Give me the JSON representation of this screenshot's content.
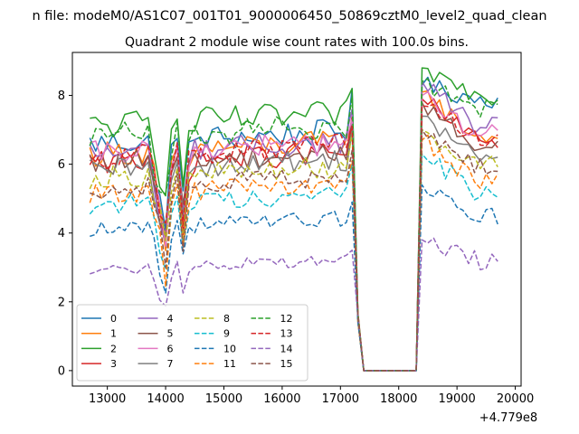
{
  "suptitle": "n file: modeM0/AS1C07_001T01_9000006450_50869cztM0_level2_quad_clean",
  "chart_data": {
    "type": "line",
    "title": "Quadrant 2 module wise count rates with 100.0s bins.",
    "xlabel": "",
    "ylabel": "",
    "x_offset_label": "+4.779e8",
    "xlim": [
      12400,
      20100
    ],
    "ylim": [
      -0.45,
      9.25
    ],
    "xticks": [
      13000,
      14000,
      15000,
      16000,
      17000,
      18000,
      19000,
      20000
    ],
    "yticks": [
      0,
      2,
      4,
      6,
      8
    ],
    "x_start": 12700,
    "x_step": 100,
    "gap": {
      "start": 17400,
      "end": 18300,
      "value": 0
    },
    "legend": {
      "location": "lower-left",
      "columns": 4
    },
    "series": [
      {
        "name": "0",
        "color": "#1f77b4",
        "dash": "solid",
        "base": 6.6,
        "level_after": 7.9,
        "peak_pre": 8.2,
        "peak_post": 8.3
      },
      {
        "name": "1",
        "color": "#ff7f0e",
        "dash": "solid",
        "base": 6.3,
        "level_after": 6.8,
        "peak_pre": 7.2,
        "peak_post": 8.1
      },
      {
        "name": "2",
        "color": "#2ca02c",
        "dash": "solid",
        "base": 7.1,
        "level_after": 8.0,
        "peak_pre": 8.2,
        "peak_post": 8.8
      },
      {
        "name": "3",
        "color": "#d62728",
        "dash": "solid",
        "base": 6.0,
        "level_after": 6.7,
        "peak_pre": 7.4,
        "peak_post": 7.9
      },
      {
        "name": "4",
        "color": "#9467bd",
        "dash": "solid",
        "base": 6.3,
        "level_after": 7.1,
        "peak_pre": 7.6,
        "peak_post": 8.4
      },
      {
        "name": "5",
        "color": "#8c564b",
        "dash": "solid",
        "base": 6.0,
        "level_after": 6.5,
        "peak_pre": 7.2,
        "peak_post": 7.8
      },
      {
        "name": "6",
        "color": "#e377c2",
        "dash": "solid",
        "base": 6.3,
        "level_after": 6.9,
        "peak_pre": 7.3,
        "peak_post": 8.0
      },
      {
        "name": "7",
        "color": "#7f7f7f",
        "dash": "solid",
        "base": 5.8,
        "level_after": 6.2,
        "peak_pre": 7.0,
        "peak_post": 7.4
      },
      {
        "name": "8",
        "color": "#bcbd22",
        "dash": "dashed",
        "base": 5.6,
        "level_after": 6.0,
        "peak_pre": 6.9,
        "peak_post": 7.0
      },
      {
        "name": "9",
        "color": "#17becf",
        "dash": "dashed",
        "base": 4.8,
        "level_after": 5.2,
        "peak_pre": 6.0,
        "peak_post": 6.3
      },
      {
        "name": "10",
        "color": "#1f77b4",
        "dash": "dashed",
        "base": 4.1,
        "level_after": 4.5,
        "peak_pre": 4.9,
        "peak_post": 5.4
      },
      {
        "name": "11",
        "color": "#ff7f0e",
        "dash": "dashed",
        "base": 5.1,
        "level_after": 5.5,
        "peak_pre": 6.1,
        "peak_post": 6.7
      },
      {
        "name": "12",
        "color": "#2ca02c",
        "dash": "dashed",
        "base": 6.8,
        "level_after": 7.6,
        "peak_pre": 8.0,
        "peak_post": 8.4
      },
      {
        "name": "13",
        "color": "#d62728",
        "dash": "dashed",
        "base": 6.2,
        "level_after": 6.8,
        "peak_pre": 7.1,
        "peak_post": 7.7
      },
      {
        "name": "14",
        "color": "#9467bd",
        "dash": "dashed",
        "base": 2.9,
        "level_after": 3.2,
        "peak_pre": 3.5,
        "peak_post": 3.8
      },
      {
        "name": "15",
        "color": "#8c564b",
        "dash": "dashed",
        "base": 5.3,
        "level_after": 5.9,
        "peak_pre": 6.4,
        "peak_post": 7.0
      }
    ]
  }
}
